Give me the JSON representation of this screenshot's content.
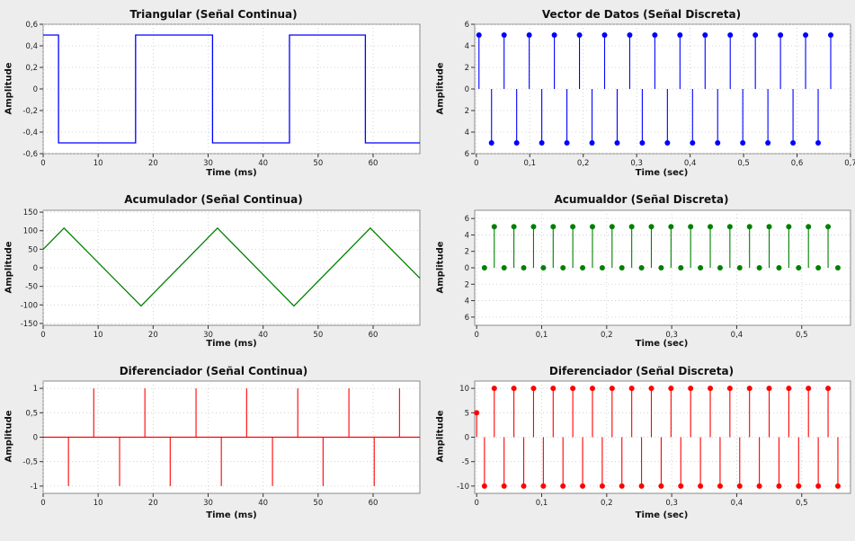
{
  "chart_data": [
    {
      "id": "tri",
      "type": "line",
      "title": "Triangular (Señal Continua)",
      "xlabel": "Time (ms)",
      "ylabel": "Amplitude",
      "xlim": [
        0,
        68.5
      ],
      "ylim": [
        -0.6,
        0.6
      ],
      "xticks": [
        0,
        10,
        20,
        30,
        40,
        50,
        60
      ],
      "xtick_labels": [
        "0",
        "10",
        "20",
        "30",
        "40",
        "50",
        "60"
      ],
      "yticks": [
        0.6,
        0.4,
        0.2,
        0,
        -0.2,
        -0.4,
        -0.6
      ],
      "ytick_labels": [
        "0,6",
        "0,4",
        "0,2",
        "0",
        "-0,2",
        "-0,4",
        "-0,6"
      ],
      "color": "#0000ff",
      "series": [
        {
          "x": [
            0,
            2.8,
            2.8,
            16.8,
            16.8,
            30.8,
            30.8,
            44.8,
            44.8,
            58.6,
            58.6,
            68.5
          ],
          "y": [
            0.5,
            0.5,
            -0.5,
            -0.5,
            0.5,
            0.5,
            -0.5,
            -0.5,
            0.5,
            0.5,
            -0.5,
            -0.5
          ]
        }
      ]
    },
    {
      "id": "vec",
      "type": "stem",
      "title": "Vector de Datos (Señal Discreta)",
      "xlabel": "Time (sec)",
      "ylabel": "Amplitude",
      "xlim": [
        -0.003,
        0.7
      ],
      "ylim": [
        -6,
        6
      ],
      "xticks": [
        0,
        0.1,
        0.2,
        0.3,
        0.4,
        0.5,
        0.6,
        0.7
      ],
      "xtick_labels": [
        "0",
        "0,1",
        "0,2",
        "0,3",
        "0,4",
        "0,5",
        "0,6",
        "0,7"
      ],
      "yticks": [
        6,
        4,
        2,
        0,
        -2,
        -4,
        -6
      ],
      "ytick_labels": [
        "6",
        "4",
        "2",
        "0",
        "2",
        "4",
        "6"
      ],
      "color": "#0000ff",
      "series": [
        {
          "points": {
            "start": 0.005,
            "step": 0.0235,
            "count": 29,
            "values": [
              5,
              -5
            ]
          }
        }
      ]
    },
    {
      "id": "acc",
      "type": "line",
      "title": "Acumulador (Señal Continua)",
      "xlabel": "Time (ms)",
      "ylabel": "Amplitude",
      "xlim": [
        0,
        68.5
      ],
      "ylim": [
        -155,
        155
      ],
      "xticks": [
        0,
        10,
        20,
        30,
        40,
        50,
        60
      ],
      "xtick_labels": [
        "0",
        "10",
        "20",
        "30",
        "40",
        "50",
        "60"
      ],
      "yticks": [
        150,
        100,
        50,
        0,
        -50,
        -100,
        -150
      ],
      "ytick_labels": [
        "150",
        "100",
        "50",
        "0",
        "-50",
        "-100",
        "-150"
      ],
      "color": "#008000",
      "series": [
        {
          "x": [
            0,
            3.8,
            17.8,
            31.7,
            45.6,
            59.5,
            68.5
          ],
          "y": [
            50,
            107,
            -103,
            107,
            -103,
            107,
            -28
          ]
        }
      ]
    },
    {
      "id": "accd",
      "type": "stem",
      "title": "Acumualdor (Señal Discreta)",
      "xlabel": "Time (sec)",
      "ylabel": "Amplitude",
      "xlim": [
        -0.003,
        0.575
      ],
      "ylim": [
        -7,
        7
      ],
      "xticks": [
        0,
        0.1,
        0.2,
        0.3,
        0.4,
        0.5
      ],
      "xtick_labels": [
        "0",
        "0,1",
        "0,2",
        "0,3",
        "0,4",
        "0,5"
      ],
      "yticks": [
        6,
        4,
        2,
        0,
        -2,
        -4,
        -6
      ],
      "ytick_labels": [
        "6",
        "4",
        "2",
        "0",
        "2",
        "4",
        "6"
      ],
      "color": "#008000",
      "series": [
        {
          "points": {
            "start": 0.012,
            "step": 0.0151,
            "count": 37,
            "values": [
              0,
              5
            ]
          }
        }
      ]
    },
    {
      "id": "dif",
      "type": "line",
      "title": "Diferenciador (Señal Continua)",
      "xlabel": "Time (ms)",
      "ylabel": "Amplitude",
      "xlim": [
        0,
        68.5
      ],
      "ylim": [
        -1.15,
        1.15
      ],
      "xticks": [
        0,
        10,
        20,
        30,
        40,
        50,
        60
      ],
      "xtick_labels": [
        "0",
        "10",
        "20",
        "30",
        "40",
        "50",
        "60"
      ],
      "yticks": [
        1,
        0.5,
        0,
        -0.5,
        -1
      ],
      "ytick_labels": [
        "1",
        "0,5",
        "0",
        "-0,5",
        "-1"
      ],
      "color": "#ff0000",
      "series": [
        {
          "spikes": [
            [
              4.6,
              -1
            ],
            [
              9.2,
              1
            ],
            [
              13.9,
              -1
            ],
            [
              18.5,
              1
            ],
            [
              23.1,
              -1
            ],
            [
              27.8,
              1
            ],
            [
              32.4,
              -1
            ],
            [
              37.0,
              1
            ],
            [
              41.7,
              -1
            ],
            [
              46.3,
              1
            ],
            [
              50.9,
              -1
            ],
            [
              55.6,
              1
            ],
            [
              60.2,
              -1
            ],
            [
              64.8,
              1
            ]
          ]
        }
      ]
    },
    {
      "id": "difd",
      "type": "stem",
      "title": "Diferenciador (Señal Discreta)",
      "xlabel": "Time (sec)",
      "ylabel": "Amplitude",
      "xlim": [
        -0.003,
        0.575
      ],
      "ylim": [
        -11.5,
        11.5
      ],
      "xticks": [
        0,
        0.1,
        0.2,
        0.3,
        0.4,
        0.5
      ],
      "xtick_labels": [
        "0",
        "0,1",
        "0,2",
        "0,3",
        "0,4",
        "0,5"
      ],
      "yticks": [
        10,
        5,
        0,
        -5,
        -10
      ],
      "ytick_labels": [
        "10",
        "5",
        "0",
        "-5",
        "-10"
      ],
      "color": "#ff0000",
      "series": [
        {
          "first": [
            0,
            5
          ],
          "points": {
            "start": 0.012,
            "step": 0.0151,
            "count": 37,
            "values": [
              -10,
              10
            ]
          }
        }
      ]
    }
  ]
}
